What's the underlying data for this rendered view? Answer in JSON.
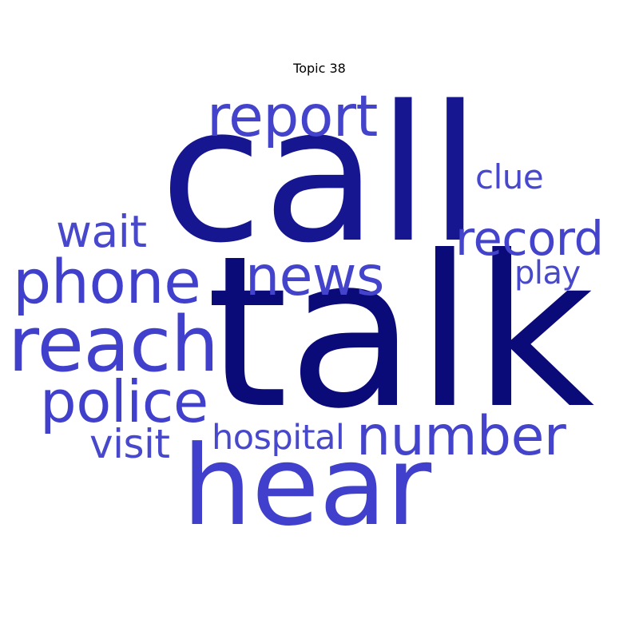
{
  "title": "Topic 38",
  "palette": {
    "dark": "#0a0a78",
    "mid": "#1a1a8e",
    "light": "#4040cc"
  },
  "words": [
    {
      "text": "talk",
      "weight": 1.0,
      "color": "#0a0a78"
    },
    {
      "text": "call",
      "weight": 0.85,
      "color": "#161690"
    },
    {
      "text": "hear",
      "weight": 0.6,
      "color": "#4040cc"
    },
    {
      "text": "report",
      "weight": 0.38,
      "color": "#4343cc"
    },
    {
      "text": "reach",
      "weight": 0.5,
      "color": "#4040cc"
    },
    {
      "text": "phone",
      "weight": 0.42,
      "color": "#4040cc"
    },
    {
      "text": "news",
      "weight": 0.36,
      "color": "#4343cc"
    },
    {
      "text": "record",
      "weight": 0.32,
      "color": "#4343cc"
    },
    {
      "text": "police",
      "weight": 0.4,
      "color": "#4040cc"
    },
    {
      "text": "number",
      "weight": 0.38,
      "color": "#4343cc"
    },
    {
      "text": "wait",
      "weight": 0.3,
      "color": "#4848cc"
    },
    {
      "text": "clue",
      "weight": 0.24,
      "color": "#4848cc"
    },
    {
      "text": "play",
      "weight": 0.22,
      "color": "#4848cc"
    },
    {
      "text": "visit",
      "weight": 0.26,
      "color": "#4848cc"
    },
    {
      "text": "hospital",
      "weight": 0.23,
      "color": "#4848cc"
    }
  ]
}
